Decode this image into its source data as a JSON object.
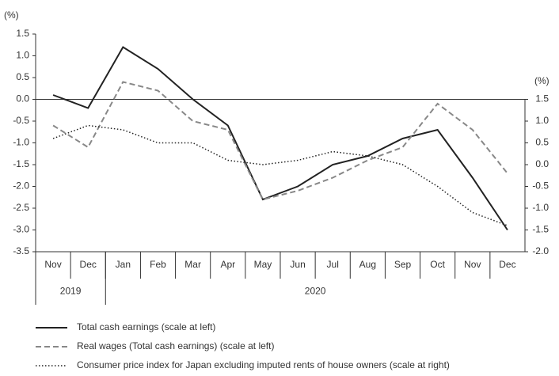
{
  "chart_data": {
    "type": "line",
    "ylabel": "(%)",
    "y2label": "(%)",
    "categories": [
      "Nov",
      "Dec",
      "Jan",
      "Feb",
      "Mar",
      "Apr",
      "May",
      "Jun",
      "Jul",
      "Aug",
      "Sep",
      "Oct",
      "Nov",
      "Dec"
    ],
    "x_groups": [
      {
        "label": "2019",
        "count": 2
      },
      {
        "label": "2020",
        "count": 12
      }
    ],
    "series": [
      {
        "name": "Total cash earnings (scale at left)",
        "color": "#222222",
        "dash": "solid",
        "values": [
          0.1,
          -0.2,
          1.2,
          0.7,
          0.0,
          -0.6,
          -2.3,
          -2.0,
          -1.5,
          -1.3,
          -0.9,
          -0.7,
          -1.8,
          -3.0
        ]
      },
      {
        "name": "Real wages (Total cash earnings) (scale at left)",
        "color": "#888888",
        "dash": "dashed",
        "values": [
          -0.6,
          -1.1,
          0.4,
          0.2,
          -0.5,
          -0.7,
          -2.3,
          -2.1,
          -1.8,
          -1.4,
          -1.1,
          -0.1,
          -0.7,
          -1.7
        ]
      },
      {
        "name": "Consumer price index for Japan excluding imputed rents of house owners (scale at right)",
        "color": "#222222",
        "dash": "dotted",
        "axis": "y2",
        "values": [
          0.6,
          0.9,
          0.8,
          0.5,
          0.5,
          0.1,
          0.0,
          0.1,
          0.3,
          0.2,
          0.0,
          -0.5,
          -1.1,
          -1.4
        ]
      }
    ],
    "ylim": [
      -3.5,
      1.5
    ],
    "yticks": [
      1.5,
      {
        "value": 1.0,
        "label": "1.0"
      },
      0.5,
      {
        "value": 0.0,
        "label": "0.0"
      },
      -0.5,
      {
        "value": -1.0,
        "label": "-1.0"
      },
      -1.5,
      {
        "value": -2.0,
        "label": "-2.0"
      },
      -2.5,
      {
        "value": -3.0,
        "label": "-3.0"
      },
      -3.5
    ],
    "y2lim": [
      -2.0,
      1.5
    ],
    "y2ticks": [
      1.5,
      {
        "value": 1.0,
        "label": "1.0"
      },
      0.5,
      {
        "value": 0.0,
        "label": "0.0"
      },
      -0.5,
      {
        "value": -1.0,
        "label": "-1.0"
      },
      -1.5,
      {
        "value": -2.0,
        "label": "-2.0"
      }
    ]
  }
}
